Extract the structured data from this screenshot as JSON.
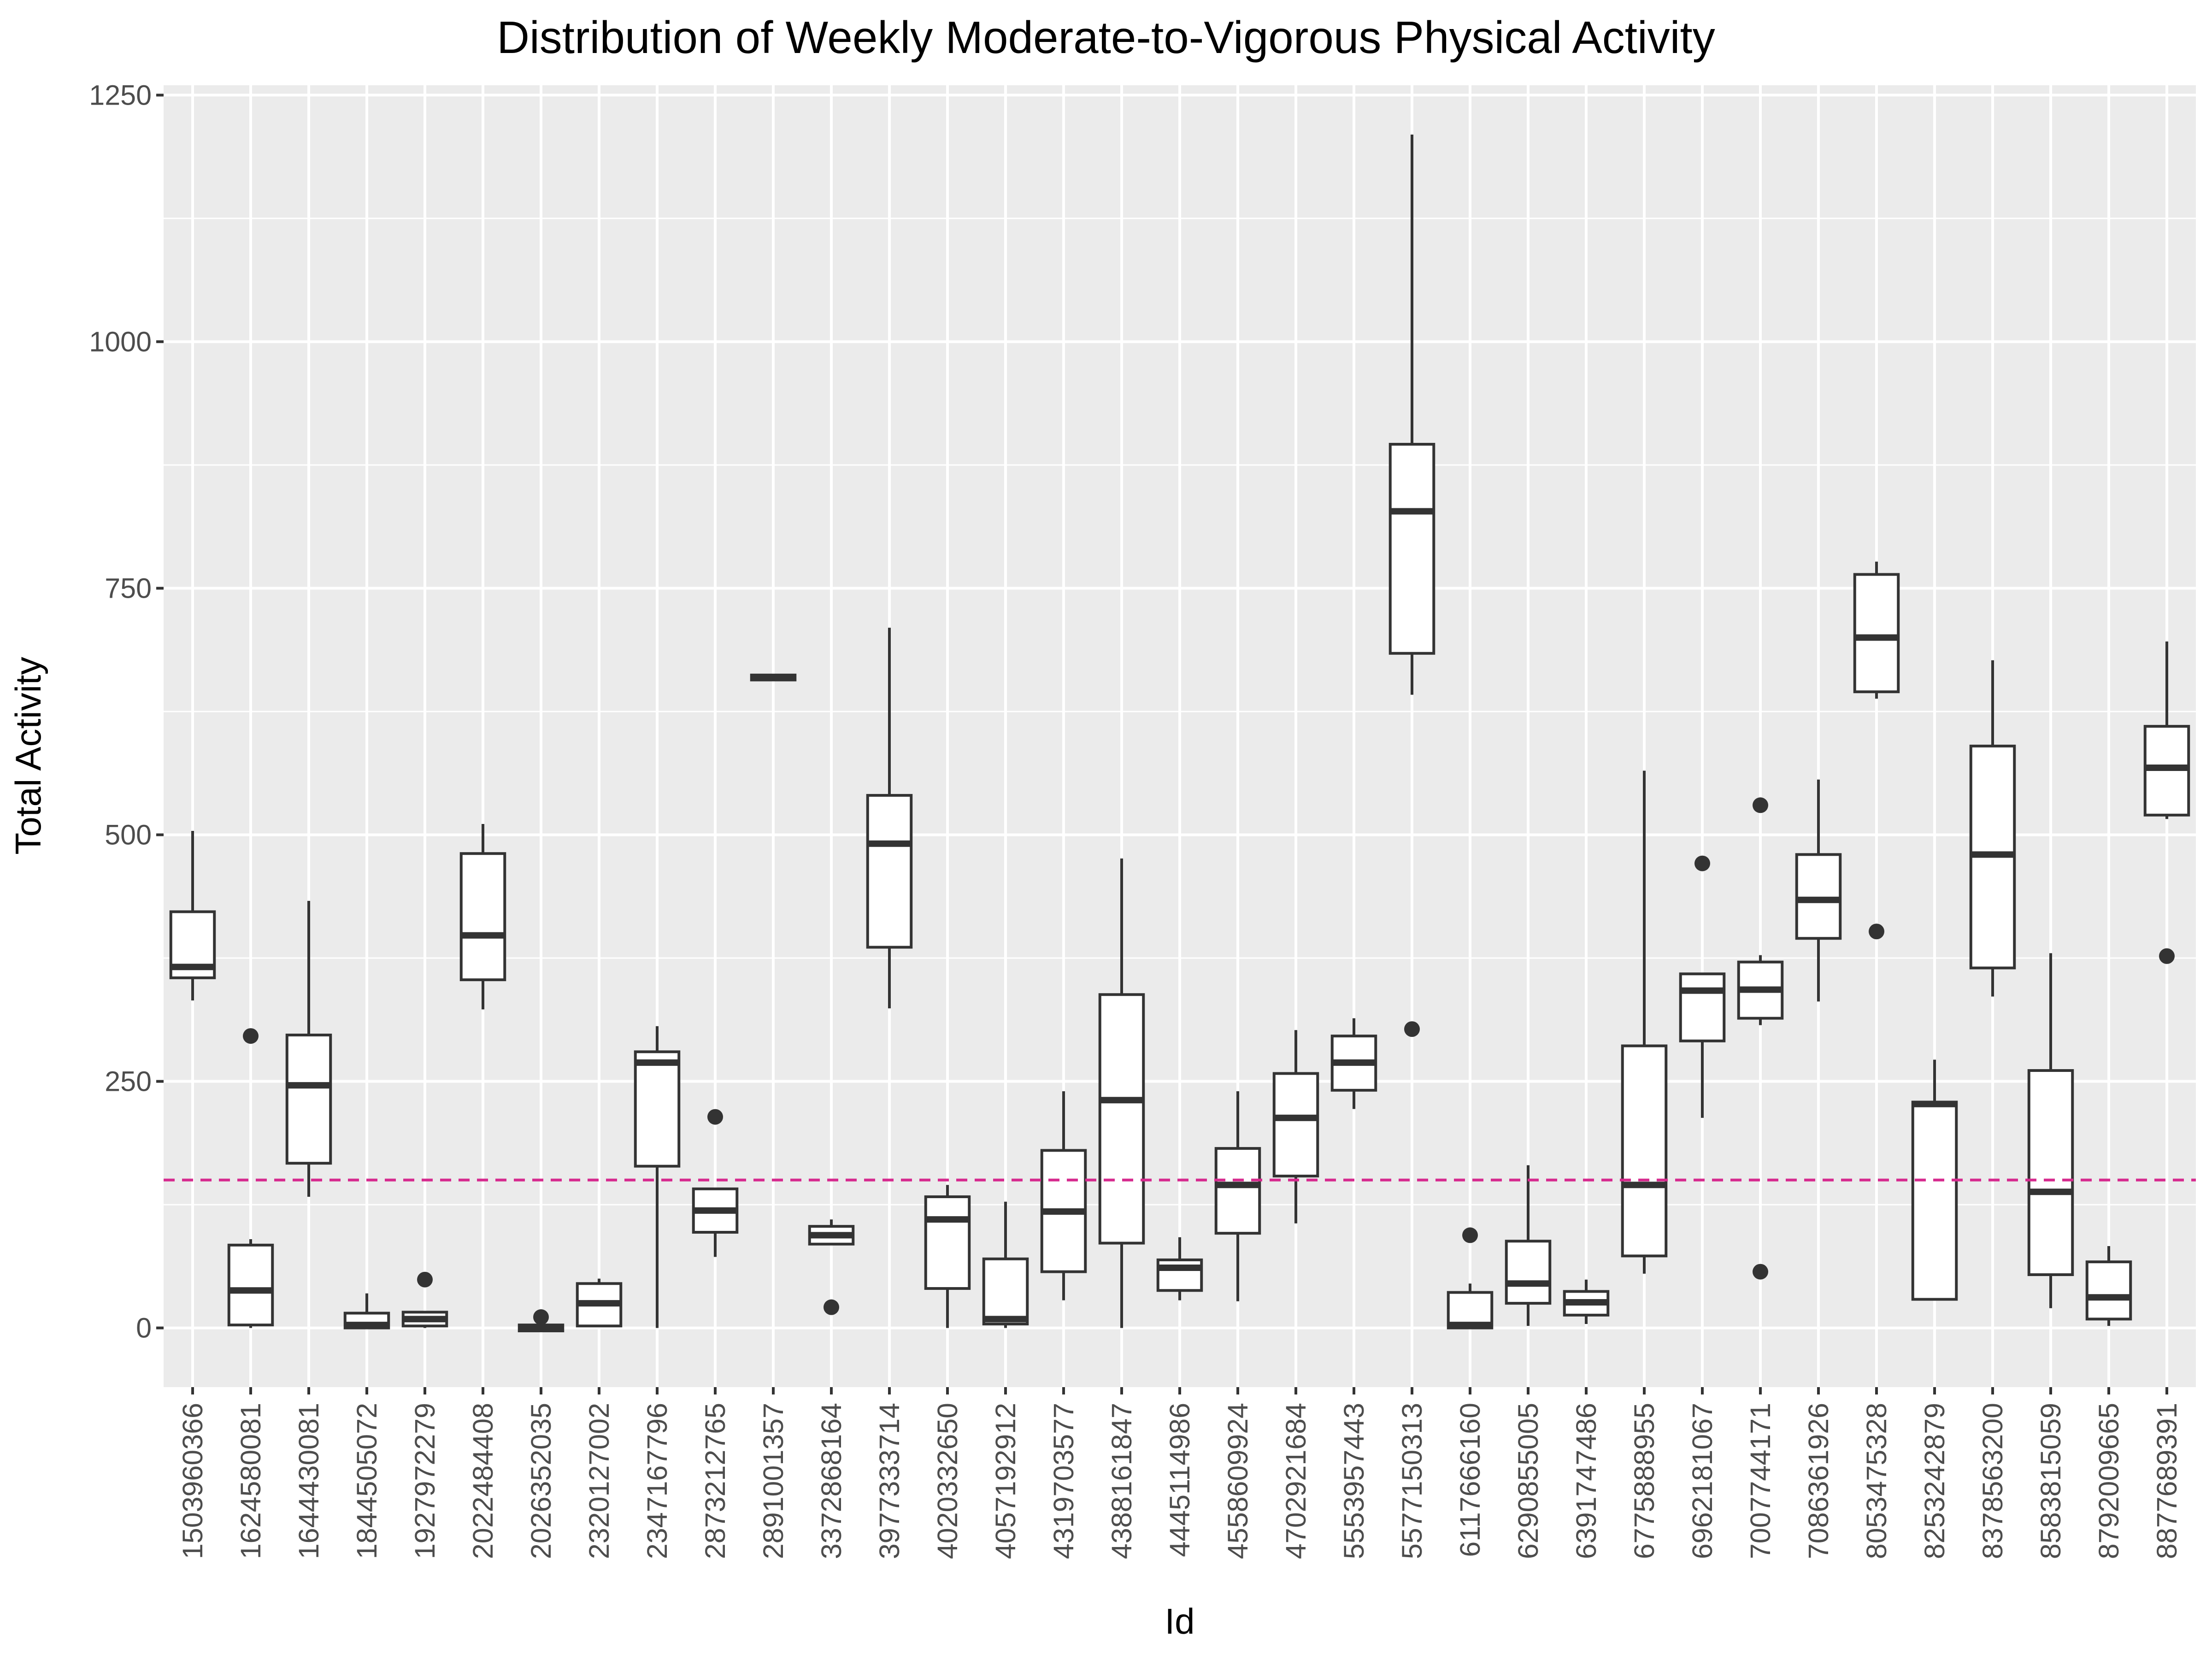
{
  "chart_data": {
    "type": "boxplot",
    "title": "Distribution of Weekly Moderate-to-Vigorous Physical Activity",
    "xlabel": "Id",
    "ylabel": "Total Activity",
    "ylim": [
      -60,
      1260
    ],
    "yticks": [
      0,
      250,
      500,
      750,
      1000,
      1250
    ],
    "grid": true,
    "reference_line": {
      "y": 150,
      "color": "#D62A8E",
      "style": "dashed"
    },
    "colors": {
      "panel": "#EBEBEB",
      "grid": "#FFFFFF",
      "box_stroke": "#333333",
      "box_fill": "#FFFFFF",
      "tick_text": "#4D4D4D"
    },
    "series": [
      {
        "id": "1503960366",
        "whisker_low": 332,
        "q1": 355,
        "median": 366,
        "q3": 422,
        "whisker_high": 504,
        "outliers": []
      },
      {
        "id": "1624580081",
        "whisker_low": 0,
        "q1": 3,
        "median": 38,
        "q3": 84,
        "whisker_high": 90,
        "outliers": [
          296
        ]
      },
      {
        "id": "1644430081",
        "whisker_low": 133,
        "q1": 167,
        "median": 246,
        "q3": 297,
        "whisker_high": 433,
        "outliers": []
      },
      {
        "id": "1844505072",
        "whisker_low": 0,
        "q1": 0,
        "median": 3,
        "q3": 15,
        "whisker_high": 35,
        "outliers": []
      },
      {
        "id": "1927972279",
        "whisker_low": 0,
        "q1": 2,
        "median": 9,
        "q3": 16,
        "whisker_high": 16,
        "outliers": [
          49
        ]
      },
      {
        "id": "2022484408",
        "whisker_low": 323,
        "q1": 353,
        "median": 398,
        "q3": 481,
        "whisker_high": 511,
        "outliers": []
      },
      {
        "id": "2026352035",
        "whisker_low": -3,
        "q1": -3,
        "median": 0,
        "q3": 3,
        "whisker_high": 3,
        "outliers": [
          11
        ]
      },
      {
        "id": "2320127002",
        "whisker_low": 2,
        "q1": 2,
        "median": 25,
        "q3": 45,
        "whisker_high": 50,
        "outliers": []
      },
      {
        "id": "2347167796",
        "whisker_low": 0,
        "q1": 164,
        "median": 269,
        "q3": 280,
        "whisker_high": 306,
        "outliers": []
      },
      {
        "id": "2873212765",
        "whisker_low": 72,
        "q1": 97,
        "median": 119,
        "q3": 141,
        "whisker_high": 141,
        "outliers": [
          214
        ]
      },
      {
        "id": "2891001357",
        "whisker_low": 657,
        "q1": 657,
        "median": 660,
        "q3": 662,
        "whisker_high": 662,
        "outliers": []
      },
      {
        "id": "3372868164",
        "whisker_low": 85,
        "q1": 85,
        "median": 94,
        "q3": 103,
        "whisker_high": 110,
        "outliers": [
          21
        ]
      },
      {
        "id": "3977333714",
        "whisker_low": 324,
        "q1": 386,
        "median": 491,
        "q3": 540,
        "whisker_high": 710,
        "outliers": []
      },
      {
        "id": "4020332650",
        "whisker_low": 0,
        "q1": 40,
        "median": 110,
        "q3": 133,
        "whisker_high": 145,
        "outliers": []
      },
      {
        "id": "4057192912",
        "whisker_low": 0,
        "q1": 4,
        "median": 9,
        "q3": 70,
        "whisker_high": 128,
        "outliers": []
      },
      {
        "id": "4319703577",
        "whisker_low": 28,
        "q1": 57,
        "median": 118,
        "q3": 180,
        "whisker_high": 240,
        "outliers": []
      },
      {
        "id": "4388161847",
        "whisker_low": 0,
        "q1": 86,
        "median": 231,
        "q3": 338,
        "whisker_high": 476,
        "outliers": []
      },
      {
        "id": "4445114986",
        "whisker_low": 28,
        "q1": 38,
        "median": 61,
        "q3": 69,
        "whisker_high": 92,
        "outliers": []
      },
      {
        "id": "4558609924",
        "whisker_low": 27,
        "q1": 96,
        "median": 145,
        "q3": 182,
        "whisker_high": 240,
        "outliers": []
      },
      {
        "id": "4702921684",
        "whisker_low": 106,
        "q1": 154,
        "median": 213,
        "q3": 258,
        "whisker_high": 302,
        "outliers": []
      },
      {
        "id": "5553957443",
        "whisker_low": 222,
        "q1": 241,
        "median": 269,
        "q3": 296,
        "whisker_high": 314,
        "outliers": []
      },
      {
        "id": "5577150313",
        "whisker_low": 642,
        "q1": 684,
        "median": 828,
        "q3": 896,
        "whisker_high": 1210,
        "outliers": [
          303
        ]
      },
      {
        "id": "6117666160",
        "whisker_low": 0,
        "q1": 0,
        "median": 3,
        "q3": 36,
        "whisker_high": 45,
        "outliers": [
          94
        ]
      },
      {
        "id": "6290855005",
        "whisker_low": 2,
        "q1": 25,
        "median": 45,
        "q3": 88,
        "whisker_high": 165,
        "outliers": []
      },
      {
        "id": "6391747486",
        "whisker_low": 4,
        "q1": 13,
        "median": 26,
        "q3": 37,
        "whisker_high": 49,
        "outliers": []
      },
      {
        "id": "6775888955",
        "whisker_low": 55,
        "q1": 73,
        "median": 145,
        "q3": 286,
        "whisker_high": 565,
        "outliers": []
      },
      {
        "id": "6962181067",
        "whisker_low": 213,
        "q1": 291,
        "median": 342,
        "q3": 359,
        "whisker_high": 359,
        "outliers": [
          471
        ]
      },
      {
        "id": "7007744171",
        "whisker_low": 307,
        "q1": 314,
        "median": 343,
        "q3": 371,
        "whisker_high": 378,
        "outliers": [
          57,
          530
        ]
      },
      {
        "id": "7086361926",
        "whisker_low": 331,
        "q1": 395,
        "median": 434,
        "q3": 480,
        "whisker_high": 556,
        "outliers": []
      },
      {
        "id": "8053475328",
        "whisker_low": 638,
        "q1": 645,
        "median": 700,
        "q3": 764,
        "whisker_high": 777,
        "outliers": [
          402
        ]
      },
      {
        "id": "8253242879",
        "whisker_low": 29,
        "q1": 29,
        "median": 227,
        "q3": 229,
        "whisker_high": 272,
        "outliers": []
      },
      {
        "id": "8378563200",
        "whisker_low": 336,
        "q1": 365,
        "median": 480,
        "q3": 590,
        "whisker_high": 677,
        "outliers": []
      },
      {
        "id": "8583815059",
        "whisker_low": 20,
        "q1": 54,
        "median": 138,
        "q3": 261,
        "whisker_high": 380,
        "outliers": []
      },
      {
        "id": "8792009665",
        "whisker_low": 2,
        "q1": 9,
        "median": 31,
        "q3": 67,
        "whisker_high": 83,
        "outliers": []
      },
      {
        "id": "8877689391",
        "whisker_low": 516,
        "q1": 520,
        "median": 568,
        "q3": 610,
        "whisker_high": 696,
        "outliers": [
          377
        ]
      }
    ]
  }
}
